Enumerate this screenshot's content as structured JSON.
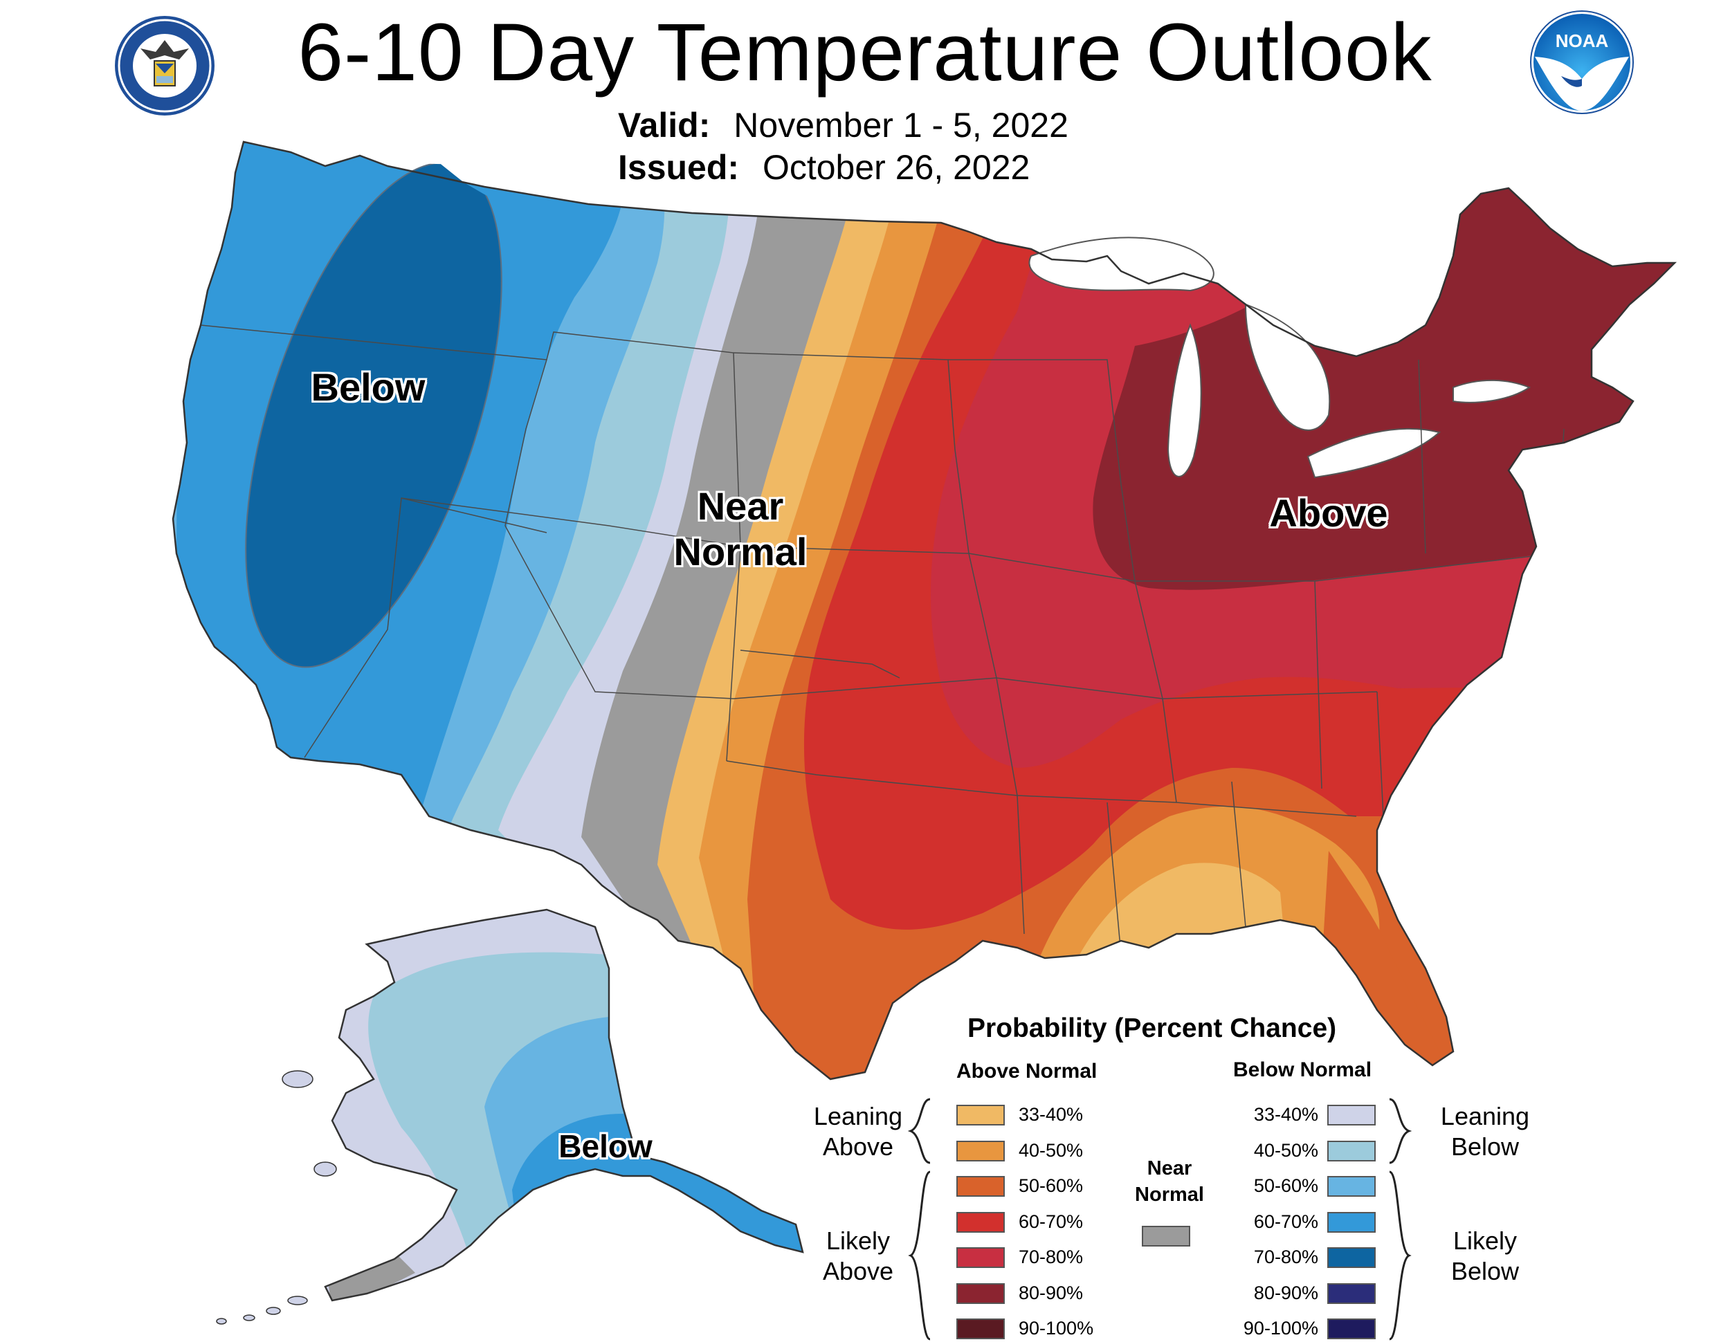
{
  "title": "6-10 Day Temperature Outlook",
  "valid_label": "Valid:",
  "valid_value": "November 1 - 5, 2022",
  "issued_label": "Issued:",
  "issued_value": "October 26, 2022",
  "map_labels": {
    "below_west": "Below",
    "near_normal_line1": "Near",
    "near_normal_line2": "Normal",
    "above_east": "Above",
    "below_alaska": "Below"
  },
  "legend": {
    "title": "Probability (Percent Chance)",
    "above_header": "Above Normal",
    "below_header": "Below Normal",
    "leaning_above_1": "Leaning",
    "leaning_above_2": "Above",
    "likely_above_1": "Likely",
    "likely_above_2": "Above",
    "leaning_below_1": "Leaning",
    "leaning_below_2": "Below",
    "likely_below_1": "Likely",
    "likely_below_2": "Below",
    "near_1": "Near",
    "near_2": "Normal",
    "near_color": "#9b9b9b",
    "above": [
      {
        "range": "33-40%",
        "color": "#f0b964"
      },
      {
        "range": "40-50%",
        "color": "#e8963f"
      },
      {
        "range": "50-60%",
        "color": "#d9622b"
      },
      {
        "range": "60-70%",
        "color": "#d2302d"
      },
      {
        "range": "70-80%",
        "color": "#c82f41"
      },
      {
        "range": "80-90%",
        "color": "#8b2430"
      },
      {
        "range": "90-100%",
        "color": "#5a1a22"
      }
    ],
    "below": [
      {
        "range": "33-40%",
        "color": "#cfd3e8"
      },
      {
        "range": "40-50%",
        "color": "#9ccbdc"
      },
      {
        "range": "50-60%",
        "color": "#67b4e2"
      },
      {
        "range": "60-70%",
        "color": "#3399d9"
      },
      {
        "range": "70-80%",
        "color": "#0e65a1"
      },
      {
        "range": "80-90%",
        "color": "#2b2d7a"
      },
      {
        "range": "90-100%",
        "color": "#1e1b5e"
      }
    ]
  },
  "logos": {
    "left": "department-of-commerce-seal",
    "right": "noaa-logo",
    "noaa_text": "NOAA"
  },
  "colors": {
    "below_70_80": "#0e65a1",
    "below_60_70": "#3399d9",
    "below_50_60": "#67b4e2",
    "below_40_50": "#9ccbdc",
    "below_33_40": "#cfd3e8",
    "near": "#9b9b9b",
    "above_33_40": "#f0b964",
    "above_40_50": "#e8963f",
    "above_50_60": "#d9622b",
    "above_60_70": "#d2302d",
    "above_70_80": "#c82f41",
    "above_80_90": "#8b2430"
  }
}
